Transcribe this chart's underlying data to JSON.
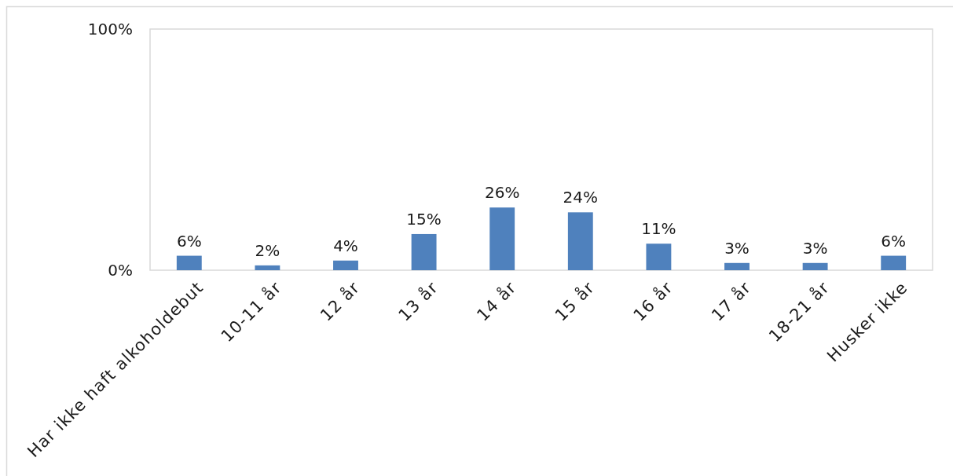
{
  "chart_data": {
    "type": "bar",
    "categories": [
      "Har ikke haft alkoholdebut",
      "10-11 år",
      "12 år",
      "13 år",
      "14 år",
      "15 år",
      "16 år",
      "17 år",
      "18-21 år",
      "Husker ikke"
    ],
    "values": [
      6,
      2,
      4,
      15,
      26,
      24,
      11,
      3,
      3,
      6
    ],
    "value_labels": [
      "6%",
      "2%",
      "4%",
      "15%",
      "26%",
      "24%",
      "11%",
      "3%",
      "3%",
      "6%"
    ],
    "color": "#4f81bd",
    "ylim": [
      0,
      100
    ],
    "yticks": [
      {
        "value": 0,
        "label": "0%"
      },
      {
        "value": 100,
        "label": "100%"
      }
    ]
  }
}
